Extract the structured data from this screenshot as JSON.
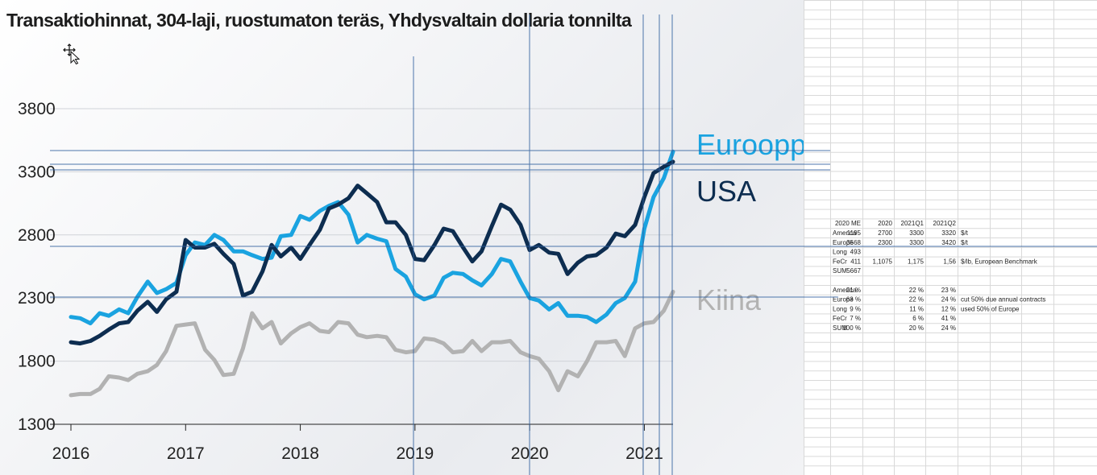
{
  "chart_data": {
    "type": "line",
    "title": "Transaktiohinnat, 304-laji, ruostumaton teräs, Yhdysvaltain dollaria tonnilta",
    "xlabel": "",
    "ylabel": "",
    "ylim": [
      1300,
      3800
    ],
    "xlim": [
      2016.0,
      2021.25
    ],
    "yticks": [
      1300,
      1800,
      2300,
      2800,
      3300,
      3800
    ],
    "xticks": [
      "2016",
      "2017",
      "2018",
      "2019",
      "2020",
      "2021"
    ],
    "grid": true,
    "legend_placement": "right, labels at line ends",
    "series": [
      {
        "name": "Eurooppa",
        "color": "#1aa3e0",
        "points": [
          [
            2016.0,
            2150
          ],
          [
            2016.08,
            2140
          ],
          [
            2016.17,
            2100
          ],
          [
            2016.25,
            2180
          ],
          [
            2016.33,
            2160
          ],
          [
            2016.42,
            2210
          ],
          [
            2016.5,
            2180
          ],
          [
            2016.58,
            2310
          ],
          [
            2016.67,
            2430
          ],
          [
            2016.75,
            2340
          ],
          [
            2016.83,
            2370
          ],
          [
            2016.92,
            2420
          ],
          [
            2017.0,
            2640
          ],
          [
            2017.08,
            2740
          ],
          [
            2017.17,
            2720
          ],
          [
            2017.25,
            2800
          ],
          [
            2017.33,
            2760
          ],
          [
            2017.42,
            2670
          ],
          [
            2017.5,
            2670
          ],
          [
            2017.58,
            2640
          ],
          [
            2017.67,
            2610
          ],
          [
            2017.75,
            2620
          ],
          [
            2017.83,
            2790
          ],
          [
            2017.92,
            2800
          ],
          [
            2018.0,
            2950
          ],
          [
            2018.08,
            2920
          ],
          [
            2018.17,
            2990
          ],
          [
            2018.25,
            3030
          ],
          [
            2018.33,
            3060
          ],
          [
            2018.42,
            2960
          ],
          [
            2018.5,
            2740
          ],
          [
            2018.58,
            2800
          ],
          [
            2018.67,
            2770
          ],
          [
            2018.75,
            2750
          ],
          [
            2018.83,
            2530
          ],
          [
            2018.92,
            2470
          ],
          [
            2019.0,
            2330
          ],
          [
            2019.08,
            2290
          ],
          [
            2019.17,
            2320
          ],
          [
            2019.25,
            2460
          ],
          [
            2019.33,
            2500
          ],
          [
            2019.42,
            2490
          ],
          [
            2019.5,
            2440
          ],
          [
            2019.58,
            2400
          ],
          [
            2019.67,
            2490
          ],
          [
            2019.75,
            2610
          ],
          [
            2019.83,
            2590
          ],
          [
            2019.92,
            2430
          ],
          [
            2020.0,
            2300
          ],
          [
            2020.08,
            2280
          ],
          [
            2020.17,
            2210
          ],
          [
            2020.25,
            2260
          ],
          [
            2020.33,
            2160
          ],
          [
            2020.42,
            2160
          ],
          [
            2020.5,
            2150
          ],
          [
            2020.58,
            2110
          ],
          [
            2020.67,
            2170
          ],
          [
            2020.75,
            2260
          ],
          [
            2020.83,
            2300
          ],
          [
            2020.92,
            2430
          ],
          [
            2021.0,
            2850
          ],
          [
            2021.08,
            3100
          ],
          [
            2021.17,
            3250
          ],
          [
            2021.25,
            3460
          ]
        ]
      },
      {
        "name": "USA",
        "color": "#0d2d50",
        "points": [
          [
            2016.0,
            1950
          ],
          [
            2016.08,
            1940
          ],
          [
            2016.17,
            1960
          ],
          [
            2016.25,
            2000
          ],
          [
            2016.33,
            2050
          ],
          [
            2016.42,
            2100
          ],
          [
            2016.5,
            2110
          ],
          [
            2016.58,
            2200
          ],
          [
            2016.67,
            2270
          ],
          [
            2016.75,
            2190
          ],
          [
            2016.83,
            2290
          ],
          [
            2016.92,
            2350
          ],
          [
            2017.0,
            2760
          ],
          [
            2017.08,
            2700
          ],
          [
            2017.17,
            2700
          ],
          [
            2017.25,
            2730
          ],
          [
            2017.33,
            2650
          ],
          [
            2017.42,
            2570
          ],
          [
            2017.5,
            2320
          ],
          [
            2017.58,
            2350
          ],
          [
            2017.67,
            2510
          ],
          [
            2017.75,
            2720
          ],
          [
            2017.83,
            2630
          ],
          [
            2017.92,
            2700
          ],
          [
            2018.0,
            2610
          ],
          [
            2018.08,
            2720
          ],
          [
            2018.17,
            2840
          ],
          [
            2018.25,
            3010
          ],
          [
            2018.33,
            3040
          ],
          [
            2018.42,
            3090
          ],
          [
            2018.5,
            3190
          ],
          [
            2018.58,
            3130
          ],
          [
            2018.67,
            3060
          ],
          [
            2018.75,
            2900
          ],
          [
            2018.83,
            2900
          ],
          [
            2018.92,
            2800
          ],
          [
            2019.0,
            2610
          ],
          [
            2019.08,
            2600
          ],
          [
            2019.17,
            2720
          ],
          [
            2019.25,
            2850
          ],
          [
            2019.33,
            2830
          ],
          [
            2019.42,
            2700
          ],
          [
            2019.5,
            2590
          ],
          [
            2019.58,
            2670
          ],
          [
            2019.67,
            2870
          ],
          [
            2019.75,
            3040
          ],
          [
            2019.83,
            3000
          ],
          [
            2019.92,
            2880
          ],
          [
            2020.0,
            2680
          ],
          [
            2020.08,
            2720
          ],
          [
            2020.17,
            2660
          ],
          [
            2020.25,
            2650
          ],
          [
            2020.33,
            2490
          ],
          [
            2020.42,
            2580
          ],
          [
            2020.5,
            2630
          ],
          [
            2020.58,
            2640
          ],
          [
            2020.67,
            2700
          ],
          [
            2020.75,
            2810
          ],
          [
            2020.83,
            2790
          ],
          [
            2020.92,
            2880
          ],
          [
            2021.0,
            3100
          ],
          [
            2021.08,
            3290
          ],
          [
            2021.17,
            3340
          ],
          [
            2021.25,
            3380
          ]
        ]
      },
      {
        "name": "Kiina",
        "color": "#b2b2b2",
        "points": [
          [
            2016.0,
            1530
          ],
          [
            2016.08,
            1540
          ],
          [
            2016.17,
            1540
          ],
          [
            2016.25,
            1580
          ],
          [
            2016.33,
            1680
          ],
          [
            2016.42,
            1670
          ],
          [
            2016.5,
            1650
          ],
          [
            2016.58,
            1700
          ],
          [
            2016.67,
            1720
          ],
          [
            2016.75,
            1770
          ],
          [
            2016.83,
            1880
          ],
          [
            2016.92,
            2080
          ],
          [
            2017.0,
            2090
          ],
          [
            2017.08,
            2100
          ],
          [
            2017.17,
            1890
          ],
          [
            2017.25,
            1810
          ],
          [
            2017.33,
            1690
          ],
          [
            2017.42,
            1700
          ],
          [
            2017.5,
            1900
          ],
          [
            2017.58,
            2180
          ],
          [
            2017.67,
            2060
          ],
          [
            2017.75,
            2110
          ],
          [
            2017.83,
            1940
          ],
          [
            2017.92,
            2020
          ],
          [
            2018.0,
            2070
          ],
          [
            2018.08,
            2100
          ],
          [
            2018.17,
            2040
          ],
          [
            2018.25,
            2030
          ],
          [
            2018.33,
            2110
          ],
          [
            2018.42,
            2100
          ],
          [
            2018.5,
            2010
          ],
          [
            2018.58,
            1990
          ],
          [
            2018.67,
            2000
          ],
          [
            2018.75,
            1990
          ],
          [
            2018.83,
            1890
          ],
          [
            2018.92,
            1870
          ],
          [
            2019.0,
            1880
          ],
          [
            2019.08,
            1980
          ],
          [
            2019.17,
            1970
          ],
          [
            2019.25,
            1940
          ],
          [
            2019.33,
            1870
          ],
          [
            2019.42,
            1880
          ],
          [
            2019.5,
            1960
          ],
          [
            2019.58,
            1880
          ],
          [
            2019.67,
            1950
          ],
          [
            2019.75,
            1950
          ],
          [
            2019.83,
            1960
          ],
          [
            2019.92,
            1870
          ],
          [
            2020.0,
            1840
          ],
          [
            2020.08,
            1820
          ],
          [
            2020.17,
            1720
          ],
          [
            2020.25,
            1570
          ],
          [
            2020.33,
            1720
          ],
          [
            2020.42,
            1680
          ],
          [
            2020.5,
            1800
          ],
          [
            2020.58,
            1950
          ],
          [
            2020.67,
            1950
          ],
          [
            2020.75,
            1960
          ],
          [
            2020.83,
            1840
          ],
          [
            2020.92,
            2060
          ],
          [
            2021.0,
            2100
          ],
          [
            2021.08,
            2110
          ],
          [
            2021.17,
            2200
          ],
          [
            2021.25,
            2350
          ]
        ]
      }
    ]
  },
  "spreadsheet": {
    "header": [
      "",
      "2020 ME",
      "2020",
      "2021Q1",
      "2021Q2",
      ""
    ],
    "rows": [
      [
        "America",
        "1195",
        "2700",
        "3300",
        "3320",
        "$/t"
      ],
      [
        "Europe",
        "3568",
        "2300",
        "3300",
        "3420",
        "$/t"
      ],
      [
        "Long",
        "493",
        "",
        "",
        "",
        ""
      ],
      [
        "FeCr",
        "411",
        "1,1075",
        "1,175",
        "1,56",
        "$/lb, European Benchmark"
      ],
      [
        "SUM",
        "5667",
        "",
        "",
        "",
        ""
      ],
      [
        "",
        "",
        "",
        "",
        "",
        ""
      ],
      [
        "America:",
        "21 %",
        "",
        "22 %",
        "23 %",
        ""
      ],
      [
        "Europe",
        "63 %",
        "",
        "22 %",
        "24 %",
        "cut 50% due annual contracts"
      ],
      [
        "Long",
        "9 %",
        "",
        "11 %",
        "12 %",
        "used 50% of Europe"
      ],
      [
        "FeCr",
        "7 %",
        "",
        "6 %",
        "41 %",
        ""
      ],
      [
        "SUM",
        "100 %",
        "",
        "20 %",
        "24 %",
        ""
      ]
    ]
  },
  "overlay_icons": [
    "move-cursor-icon"
  ]
}
